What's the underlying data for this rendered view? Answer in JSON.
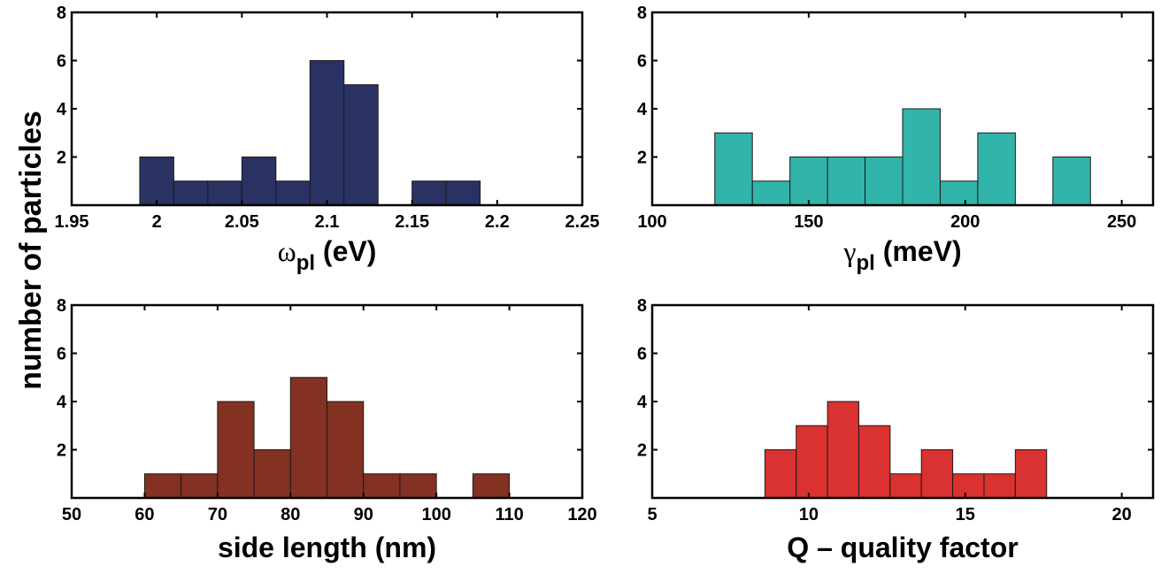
{
  "ylabel": "number of particles",
  "chart_data": [
    {
      "type": "bar",
      "title": "",
      "xlabel": {
        "symbol": "ω",
        "sub": "pl",
        "unit": "(eV)"
      },
      "ylabel": "number of particles",
      "color": "#293262",
      "xlim": [
        1.95,
        2.25
      ],
      "ylim": [
        0,
        8
      ],
      "xticks": [
        "1.95",
        "2",
        "2.05",
        "2.1",
        "2.15",
        "2.2",
        "2.25"
      ],
      "yticks": [
        "2",
        "4",
        "6",
        "8"
      ],
      "bins": [
        {
          "start": 1.99,
          "end": 2.01,
          "count": 2
        },
        {
          "start": 2.01,
          "end": 2.03,
          "count": 1
        },
        {
          "start": 2.03,
          "end": 2.05,
          "count": 1
        },
        {
          "start": 2.05,
          "end": 2.07,
          "count": 2
        },
        {
          "start": 2.07,
          "end": 2.09,
          "count": 1
        },
        {
          "start": 2.09,
          "end": 2.11,
          "count": 6
        },
        {
          "start": 2.11,
          "end": 2.13,
          "count": 5
        },
        {
          "start": 2.15,
          "end": 2.17,
          "count": 1
        },
        {
          "start": 2.17,
          "end": 2.19,
          "count": 1
        }
      ]
    },
    {
      "type": "bar",
      "title": "",
      "xlabel": {
        "symbol": "γ",
        "sub": "pl",
        "unit": "(meV)"
      },
      "ylabel": "number of particles",
      "color": "#31b4aa",
      "xlim": [
        100,
        260
      ],
      "ylim": [
        0,
        8
      ],
      "xticks": [
        "100",
        "150",
        "200",
        "250"
      ],
      "yticks": [
        "2",
        "4",
        "6",
        "8"
      ],
      "bins": [
        {
          "start": 120,
          "end": 132,
          "count": 3
        },
        {
          "start": 132,
          "end": 144,
          "count": 1
        },
        {
          "start": 144,
          "end": 156,
          "count": 2
        },
        {
          "start": 156,
          "end": 168,
          "count": 2
        },
        {
          "start": 168,
          "end": 180,
          "count": 2
        },
        {
          "start": 180,
          "end": 192,
          "count": 4
        },
        {
          "start": 192,
          "end": 204,
          "count": 1
        },
        {
          "start": 204,
          "end": 216,
          "count": 3
        },
        {
          "start": 228,
          "end": 240,
          "count": 2
        }
      ]
    },
    {
      "type": "bar",
      "title": "",
      "xlabel": {
        "text": "side length (nm)"
      },
      "ylabel": "number of particles",
      "color": "#833122",
      "xlim": [
        50,
        120
      ],
      "ylim": [
        0,
        8
      ],
      "xticks": [
        "50",
        "60",
        "70",
        "80",
        "90",
        "100",
        "110",
        "120"
      ],
      "yticks": [
        "2",
        "4",
        "6",
        "8"
      ],
      "bins": [
        {
          "start": 60,
          "end": 65,
          "count": 1
        },
        {
          "start": 65,
          "end": 70,
          "count": 1
        },
        {
          "start": 70,
          "end": 75,
          "count": 4
        },
        {
          "start": 75,
          "end": 80,
          "count": 2
        },
        {
          "start": 80,
          "end": 85,
          "count": 5
        },
        {
          "start": 85,
          "end": 90,
          "count": 4
        },
        {
          "start": 90,
          "end": 95,
          "count": 1
        },
        {
          "start": 95,
          "end": 100,
          "count": 1
        },
        {
          "start": 105,
          "end": 110,
          "count": 1
        }
      ]
    },
    {
      "type": "bar",
      "title": "",
      "xlabel": {
        "text": "Q – quality factor"
      },
      "ylabel": "number of particles",
      "color": "#da3230",
      "xlim": [
        5,
        21
      ],
      "ylim": [
        0,
        8
      ],
      "xticks": [
        "5",
        "10",
        "15",
        "20"
      ],
      "yticks": [
        "2",
        "4",
        "6",
        "8"
      ],
      "bins": [
        {
          "start": 8.6,
          "end": 9.6,
          "count": 2
        },
        {
          "start": 9.6,
          "end": 10.6,
          "count": 3
        },
        {
          "start": 10.6,
          "end": 11.6,
          "count": 4
        },
        {
          "start": 11.6,
          "end": 12.6,
          "count": 3
        },
        {
          "start": 12.6,
          "end": 13.6,
          "count": 1
        },
        {
          "start": 13.6,
          "end": 14.6,
          "count": 2
        },
        {
          "start": 14.6,
          "end": 15.6,
          "count": 1
        },
        {
          "start": 15.6,
          "end": 16.6,
          "count": 1
        },
        {
          "start": 16.6,
          "end": 17.6,
          "count": 2
        }
      ]
    }
  ]
}
